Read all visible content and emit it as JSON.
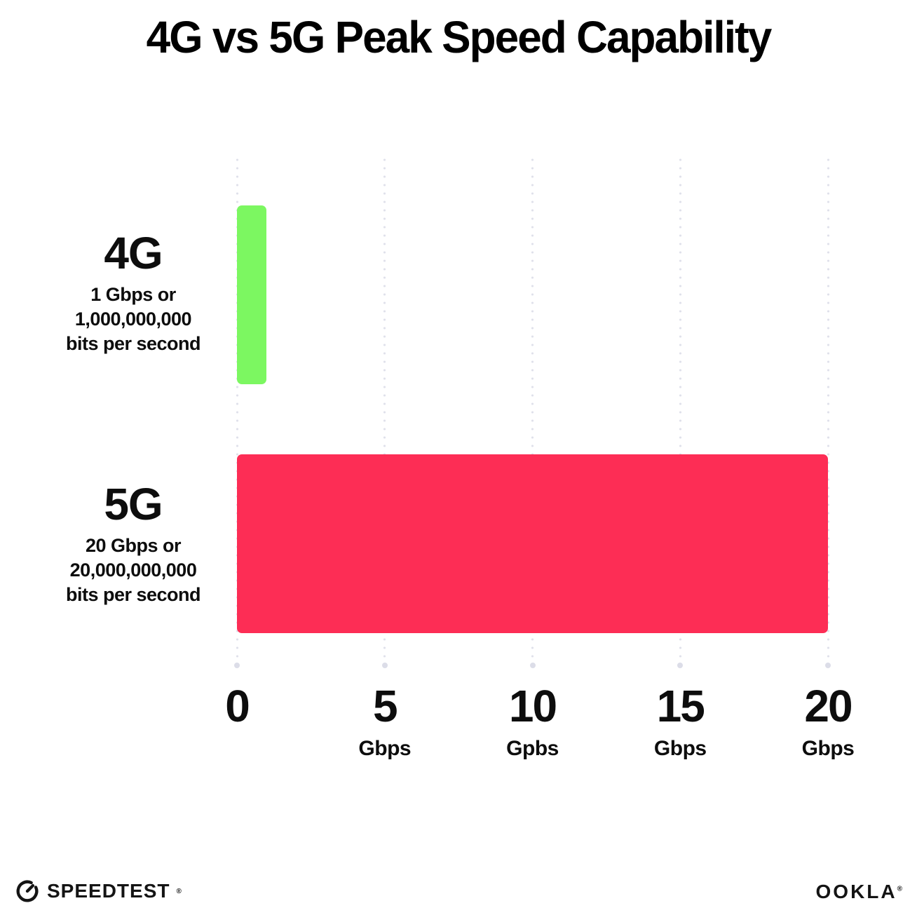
{
  "title": "4G vs 5G Peak Speed Capability",
  "chart_data": {
    "type": "bar",
    "orientation": "horizontal",
    "title": "4G vs 5G Peak Speed Capability",
    "categories": [
      "4G",
      "5G"
    ],
    "values": [
      1,
      20
    ],
    "value_unit": "Gbps",
    "xlim": [
      0,
      20
    ],
    "xlabel": "",
    "ylabel": "",
    "grid": "vertical dotted gridlines at each tick",
    "legend": "none",
    "series": [
      {
        "name": "4G",
        "value": 1,
        "color": "#7cf761",
        "label_heading": "4G",
        "label_lines": [
          "1 Gbps or",
          "1,000,000,000",
          "bits per second"
        ]
      },
      {
        "name": "5G",
        "value": 20,
        "color": "#fd2d55",
        "label_heading": "5G",
        "label_lines": [
          "20 Gbps or",
          "20,000,000,000",
          "bits per second"
        ]
      }
    ],
    "x_ticks": [
      {
        "value": 0,
        "label": "0",
        "unit": ""
      },
      {
        "value": 5,
        "label": "5",
        "unit": "Gbps"
      },
      {
        "value": 10,
        "label": "10",
        "unit": "Gpbs"
      },
      {
        "value": 15,
        "label": "15",
        "unit": "Gbps"
      },
      {
        "value": 20,
        "label": "20",
        "unit": "Gbps"
      }
    ]
  },
  "footer": {
    "speedtest": {
      "label": "SPEEDTEST",
      "trademark": "®",
      "icon": "speedometer-gauge-icon"
    },
    "ookla": {
      "label": "OOKLA",
      "trademark": "®"
    }
  },
  "colors": {
    "background": "#ffffff",
    "text": "#0d0d0d",
    "bar_4g": "#7cf761",
    "bar_5g": "#fd2d55",
    "gridline": "#e0e1eb"
  }
}
